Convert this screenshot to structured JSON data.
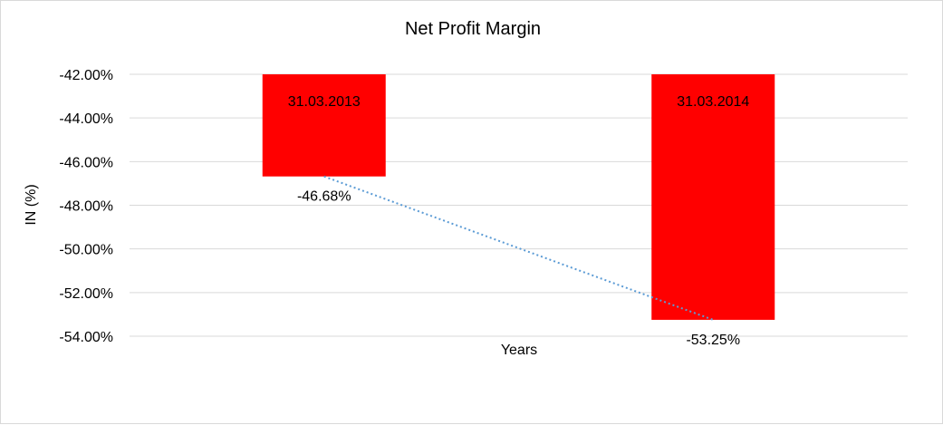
{
  "chart_data": {
    "type": "bar",
    "title": "Net Profit Margin",
    "xlabel": "Years",
    "ylabel": "IN (%)",
    "categories": [
      "31.03.2013",
      "31.03.2014"
    ],
    "series": [
      {
        "values": [
          -46.68,
          -53.25
        ],
        "data_labels": [
          "-46.68%",
          "-53.25%"
        ]
      }
    ],
    "ylim": [
      -54,
      -42
    ],
    "yticks": [
      -42,
      -44,
      -46,
      -48,
      -50,
      -52,
      -54
    ],
    "ytick_labels": [
      "-42.00%",
      "-44.00%",
      "-46.00%",
      "-48.00%",
      "-50.00%",
      "-52.00%",
      "-54.00%"
    ],
    "trendline": "linear",
    "grid": true,
    "legend": "none",
    "colors": {
      "bar": "#ff0000",
      "trendline": "#5b9bd5",
      "grid": "#d9d9d9"
    }
  }
}
